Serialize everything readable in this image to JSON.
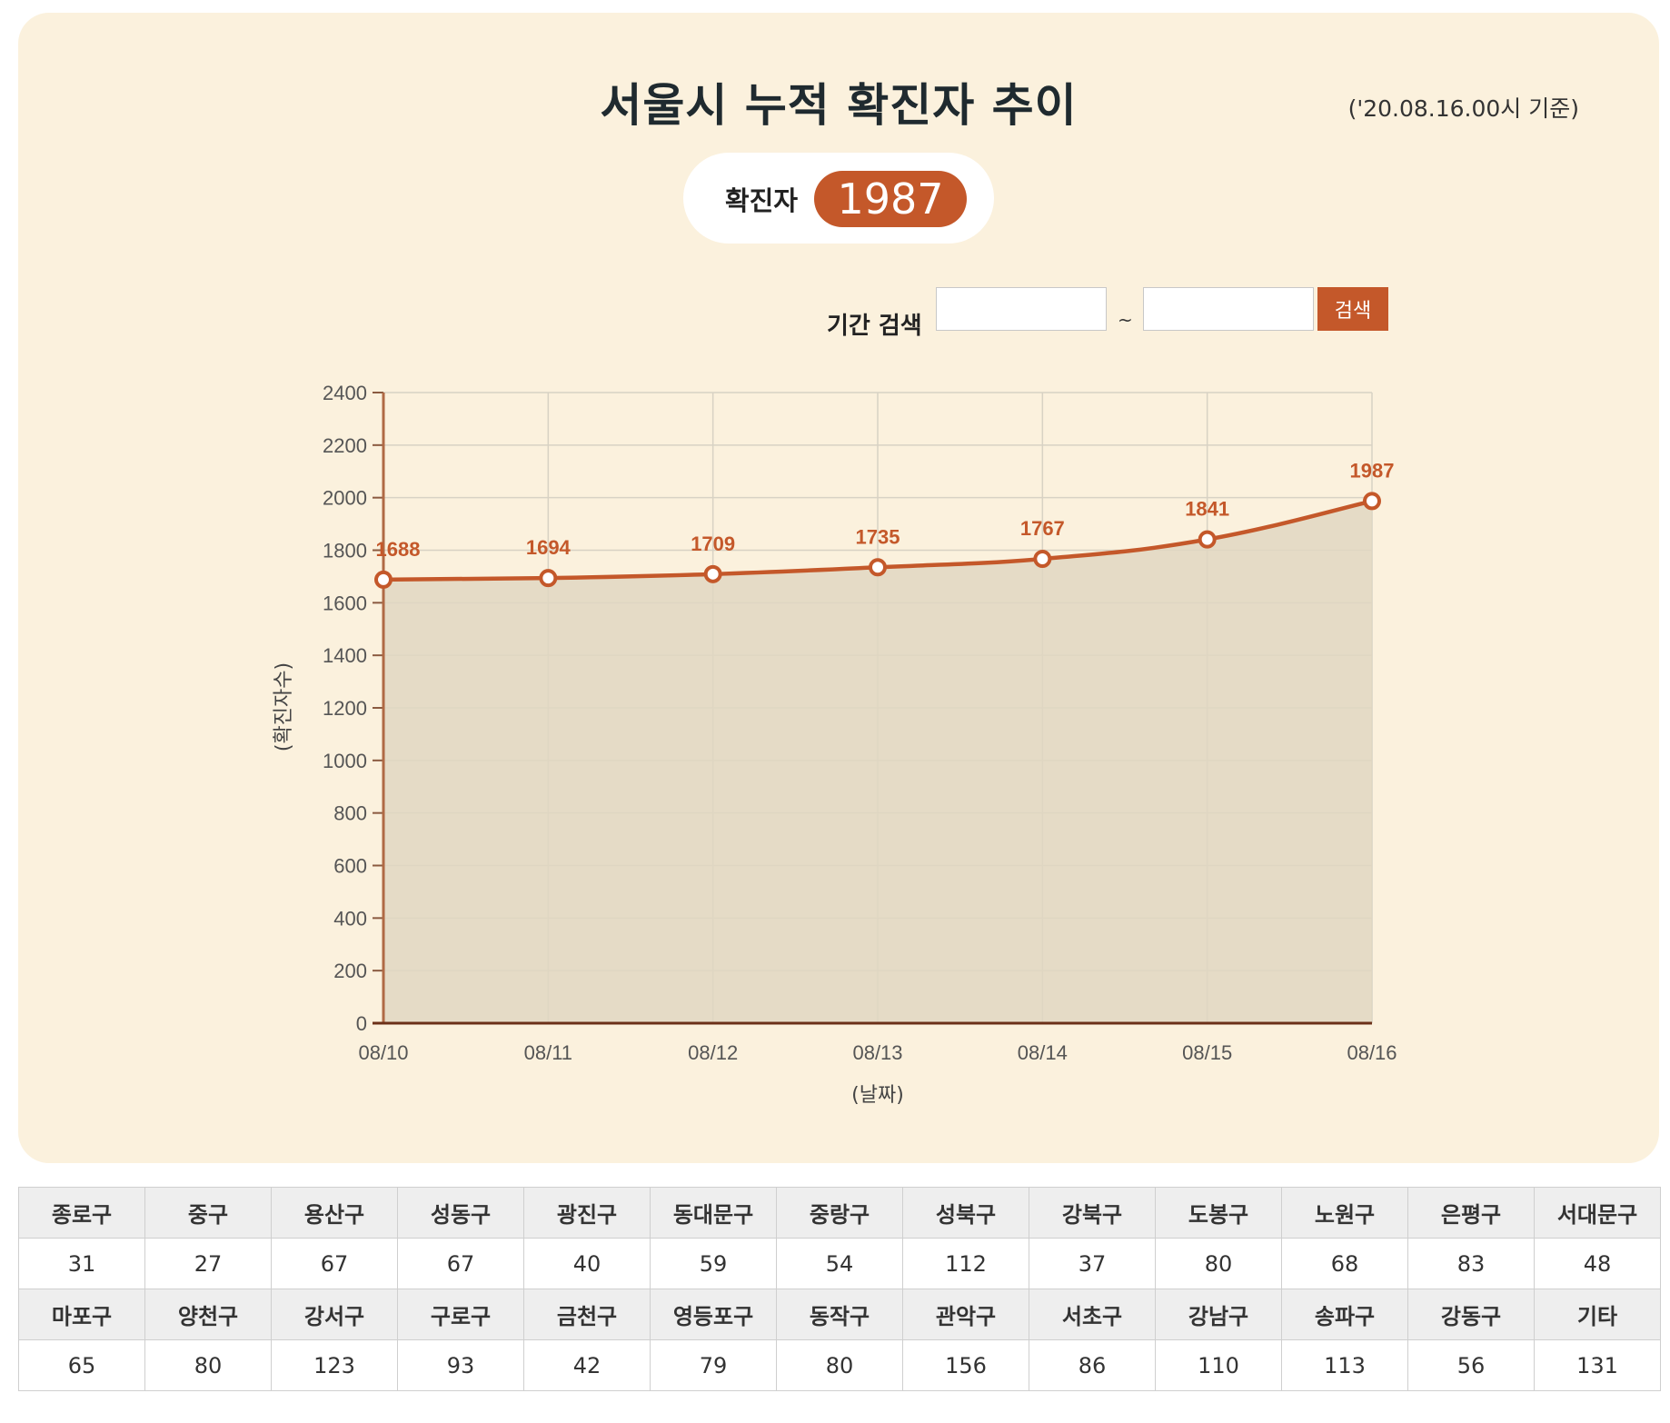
{
  "header": {
    "title": "서울시 누적 확진자 추이",
    "basis": "('20.08.16.00시 기준)"
  },
  "summary": {
    "label": "확진자",
    "count": "1987"
  },
  "search": {
    "label": "기간 검색",
    "start_value": "",
    "end_value": "",
    "separator": "~",
    "button_label": "검색"
  },
  "colors": {
    "accent": "#c4582a",
    "panel_bg": "#fbf1dd",
    "area_fill": "#e0d7c2"
  },
  "chart_data": {
    "type": "area",
    "categories": [
      "08/10",
      "08/11",
      "08/12",
      "08/13",
      "08/14",
      "08/15",
      "08/16"
    ],
    "series": [
      {
        "values": [
          1688,
          1694,
          1709,
          1735,
          1767,
          1841,
          1987
        ]
      }
    ],
    "ylim": [
      0,
      2400
    ],
    "yticks": [
      0,
      200,
      400,
      600,
      800,
      1000,
      1200,
      1400,
      1600,
      1800,
      2000,
      2200,
      2400
    ],
    "xlabel": "(날짜)",
    "ylabel": "(확진자수)",
    "grid": true,
    "data_labels": true
  },
  "districts": {
    "row1": {
      "names": [
        "종로구",
        "중구",
        "용산구",
        "성동구",
        "광진구",
        "동대문구",
        "중랑구",
        "성북구",
        "강북구",
        "도봉구",
        "노원구",
        "은평구",
        "서대문구"
      ],
      "values": [
        "31",
        "27",
        "67",
        "67",
        "40",
        "59",
        "54",
        "112",
        "37",
        "80",
        "68",
        "83",
        "48"
      ]
    },
    "row2": {
      "names": [
        "마포구",
        "양천구",
        "강서구",
        "구로구",
        "금천구",
        "영등포구",
        "동작구",
        "관악구",
        "서초구",
        "강남구",
        "송파구",
        "강동구",
        "기타"
      ],
      "values": [
        "65",
        "80",
        "123",
        "93",
        "42",
        "79",
        "80",
        "156",
        "86",
        "110",
        "113",
        "56",
        "131"
      ]
    }
  }
}
